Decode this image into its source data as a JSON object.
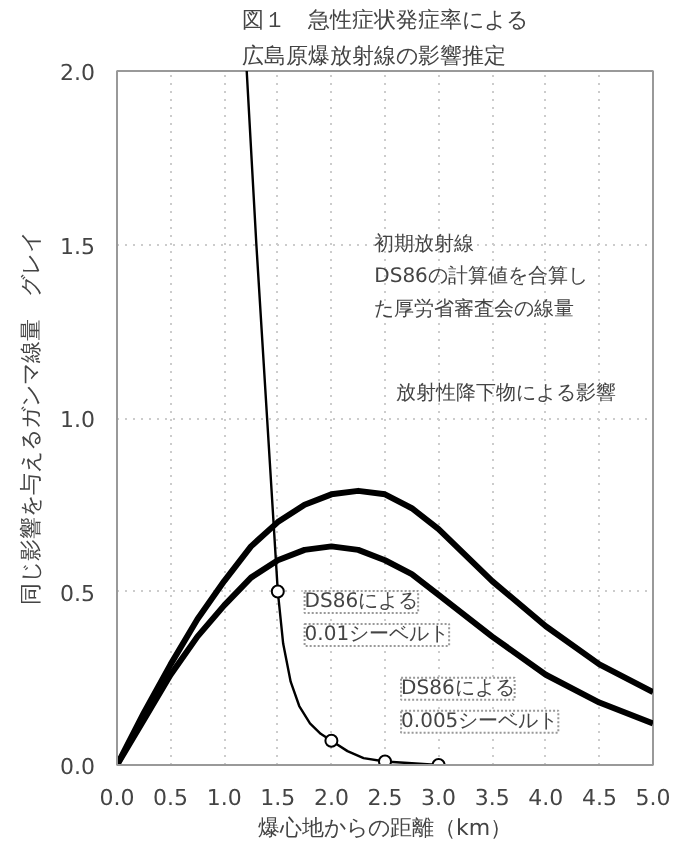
{
  "chart_data": {
    "type": "line",
    "title": "図１　急性症状発症率による広島原爆放射線の影響推定",
    "xlabel": "爆心地からの距離（km）",
    "ylabel": "同じ影響を与えるガンマ線量　グレイ",
    "xlim": [
      0,
      5
    ],
    "ylim": [
      0,
      2
    ],
    "xticks": [
      {
        "value": 0,
        "label": "0.0"
      },
      {
        "value": 0.5,
        "label": "0.5"
      },
      {
        "value": 1,
        "label": "1.0"
      },
      {
        "value": 1.5,
        "label": "1.5"
      },
      {
        "value": 2,
        "label": "2.0"
      },
      {
        "value": 2.5,
        "label": "2.5"
      },
      {
        "value": 3,
        "label": "3.0"
      },
      {
        "value": 3.5,
        "label": "3.5"
      },
      {
        "value": 4,
        "label": "4.0"
      },
      {
        "value": 4.5,
        "label": "4.5"
      },
      {
        "value": 5,
        "label": "5.0"
      }
    ],
    "yticks": [
      {
        "value": 0,
        "label": "0.0"
      },
      {
        "value": 0.5,
        "label": "0.5"
      },
      {
        "value": 1,
        "label": "1.0"
      },
      {
        "value": 1.5,
        "label": "1.5"
      },
      {
        "value": 2,
        "label": "2.0"
      }
    ],
    "grid": true,
    "series": [
      {
        "type": "line",
        "color": "#000000",
        "x": [
          1.21,
          1.3,
          1.4,
          1.45,
          1.5,
          1.55,
          1.62,
          1.7,
          1.8,
          1.9,
          2.0,
          2.15,
          2.3,
          2.5,
          2.75,
          3.0
        ],
        "values": [
          2.0,
          1.5,
          1.0,
          0.75,
          0.5,
          0.35,
          0.24,
          0.17,
          0.12,
          0.09,
          0.07,
          0.04,
          0.02,
          0.01,
          0.005,
          0.0
        ]
      },
      {
        "type": "scatter",
        "marker": "circle",
        "color": "#000000",
        "x": [
          1.5,
          2.0,
          2.5,
          3.0
        ],
        "values": [
          0.5,
          0.07,
          0.01,
          0.0
        ]
      },
      {
        "type": "line",
        "color": "#000000",
        "x": [
          0,
          0.25,
          0.5,
          0.75,
          1.0,
          1.25,
          1.5,
          1.75,
          2.0,
          2.25,
          2.5,
          2.75,
          3.0,
          3.5,
          4.0,
          4.5,
          5.0
        ],
        "values": [
          0,
          0.15,
          0.29,
          0.42,
          0.53,
          0.63,
          0.7,
          0.75,
          0.78,
          0.79,
          0.78,
          0.74,
          0.68,
          0.53,
          0.4,
          0.29,
          0.21
        ]
      },
      {
        "type": "line",
        "color": "#000000",
        "x": [
          0,
          0.25,
          0.5,
          0.75,
          1.0,
          1.25,
          1.5,
          1.75,
          2.0,
          2.25,
          2.5,
          2.75,
          3.0,
          3.5,
          4.0,
          4.5,
          5.0
        ],
        "values": [
          0,
          0.13,
          0.26,
          0.37,
          0.46,
          0.54,
          0.59,
          0.62,
          0.63,
          0.62,
          0.59,
          0.55,
          0.49,
          0.37,
          0.26,
          0.18,
          0.12
        ]
      }
    ],
    "annotations": [
      "初期放射線\nDS86の計算値を合算した厚労省審査会の線量",
      "放射性降下物による影響",
      "DS86による\n0.01シーベルト",
      "DS86による\n0.005シーベルト"
    ]
  }
}
